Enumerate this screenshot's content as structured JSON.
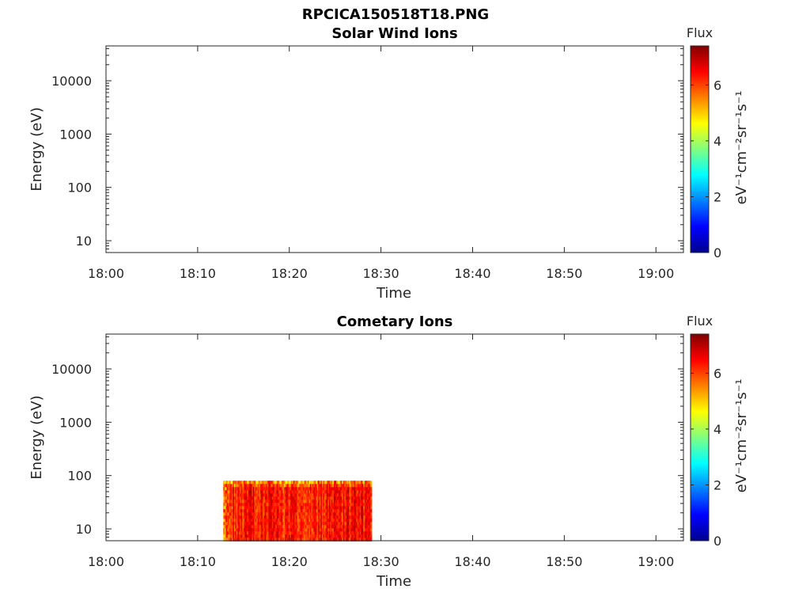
{
  "figure": {
    "suptitle": "RPCICA150518T18.PNG"
  },
  "colormap": {
    "name": "jet",
    "stops": [
      "#00008f",
      "#0000ff",
      "#0080ff",
      "#00ffff",
      "#80ff80",
      "#ffff00",
      "#ff8000",
      "#ff0000",
      "#800000"
    ]
  },
  "chart_data": [
    {
      "type": "heatmap",
      "title": "Solar Wind Ions",
      "xlabel": "Time",
      "ylabel": "Energy (eV)",
      "x_ticks": [
        "18:00",
        "18:10",
        "18:20",
        "18:30",
        "18:40",
        "18:50",
        "19:00"
      ],
      "x_range_minutes": [
        0,
        63
      ],
      "y_scale": "log",
      "y_range": [
        6,
        45000
      ],
      "y_ticks": [
        10,
        100,
        1000,
        10000
      ],
      "y_tick_labels": [
        "10",
        "100",
        "1000",
        "10000"
      ],
      "colorbar": {
        "title": "Flux",
        "label": "eV⁻¹cm⁻²sr⁻¹s⁻¹",
        "range": [
          0,
          7.4
        ],
        "ticks": [
          0,
          2,
          4,
          6
        ],
        "tick_labels": [
          "0",
          "2",
          "4",
          "6"
        ]
      },
      "data_region": null
    },
    {
      "type": "heatmap",
      "title": "Cometary Ions",
      "xlabel": "Time",
      "ylabel": "Energy (eV)",
      "x_ticks": [
        "18:00",
        "18:10",
        "18:20",
        "18:30",
        "18:40",
        "18:50",
        "19:00"
      ],
      "x_range_minutes": [
        0,
        63
      ],
      "y_scale": "log",
      "y_range": [
        6,
        45000
      ],
      "y_ticks": [
        10,
        100,
        1000,
        10000
      ],
      "y_tick_labels": [
        "10",
        "100",
        "1000",
        "10000"
      ],
      "colorbar": {
        "title": "Flux",
        "label": "eV⁻¹cm⁻²sr⁻¹s⁻¹",
        "range": [
          0,
          7.4
        ],
        "ticks": [
          0,
          2,
          4,
          6
        ],
        "tick_labels": [
          "0",
          "2",
          "4",
          "6"
        ]
      },
      "data_region": {
        "t_start_minutes": 12.8,
        "t_end_minutes": 28.9,
        "e_min": 6,
        "e_max": 80,
        "typical_flux": 6.3
      }
    }
  ]
}
